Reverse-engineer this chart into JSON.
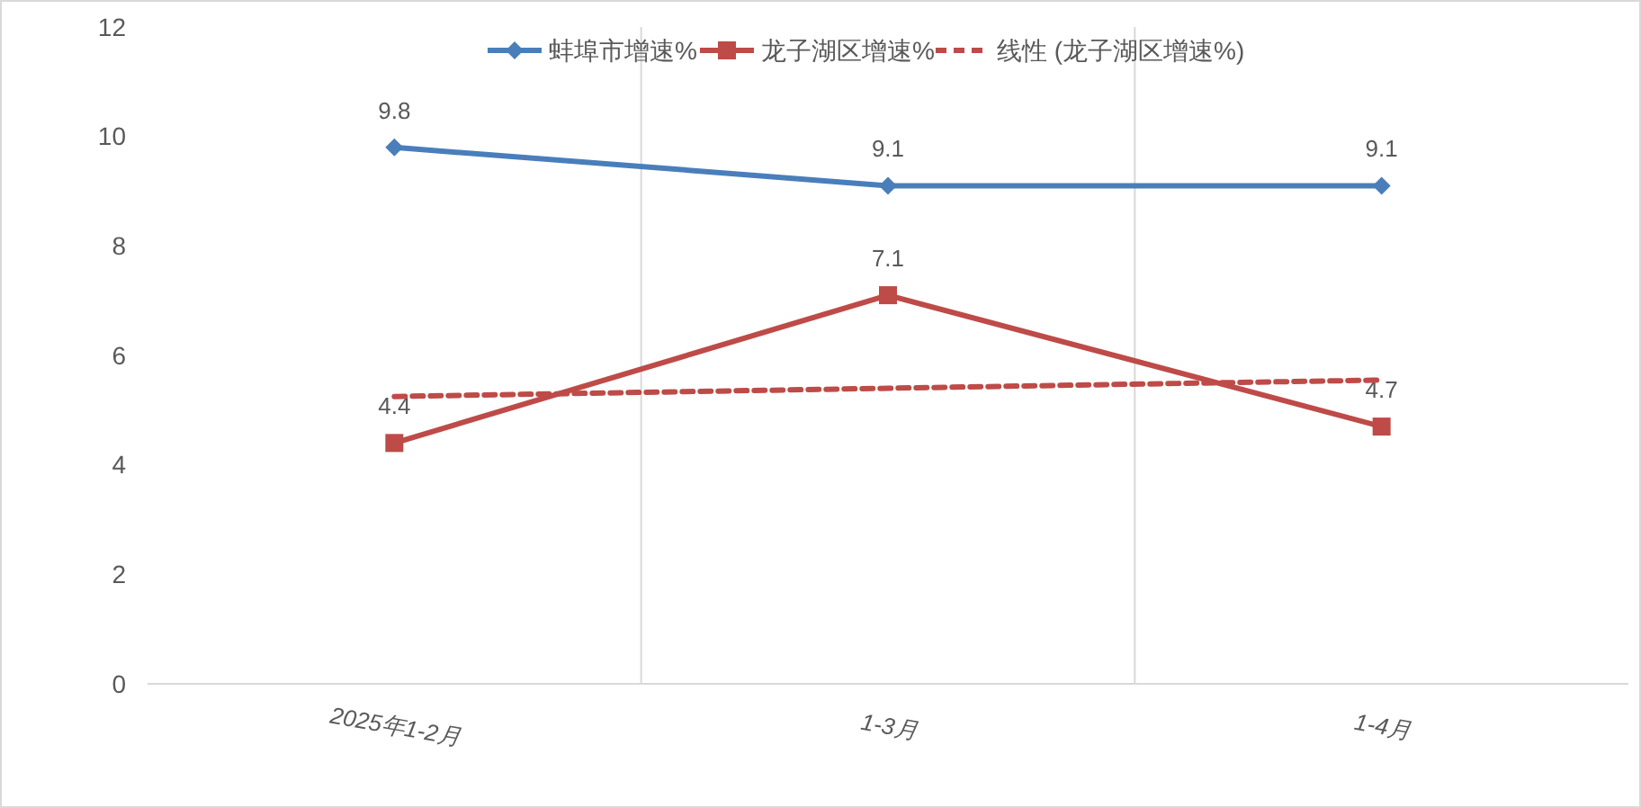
{
  "chart_data": {
    "type": "line",
    "categories": [
      "2025年1-2月",
      "1-3月",
      "1-4月"
    ],
    "ylim": [
      0,
      12
    ],
    "yticks": [
      0,
      2,
      4,
      6,
      8,
      10,
      12
    ],
    "grid": "x",
    "legend": "top",
    "series": [
      {
        "name": "蚌埠市增速%",
        "color": "#4a7ebb",
        "values": [
          9.8,
          9.1,
          9.1
        ],
        "marker": "diamond",
        "value_labels": [
          "9.8",
          "9.1",
          "9.1"
        ]
      },
      {
        "name": "龙子湖区增速%",
        "color": "#be4b48",
        "values": [
          4.4,
          7.1,
          4.7
        ],
        "marker": "square",
        "value_labels": [
          "4.4",
          "7.1",
          "4.7"
        ]
      },
      {
        "name": "线性 (龙子湖区增速%)",
        "color": "#be4b48",
        "values": [
          5.25,
          5.4,
          5.55
        ],
        "marker": "none",
        "line_style": "dashed"
      }
    ]
  }
}
